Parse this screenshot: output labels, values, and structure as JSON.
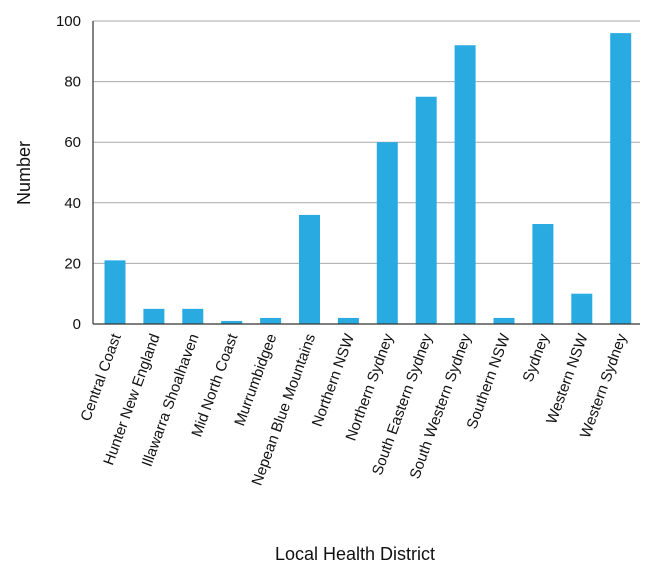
{
  "chart_data": {
    "type": "bar",
    "title": "",
    "xlabel": "Local Health District",
    "ylabel": "Number",
    "ylim": [
      0,
      100
    ],
    "yticks": [
      0,
      20,
      40,
      60,
      80,
      100
    ],
    "grid": true,
    "categories": [
      "Central Coast",
      "Hunter New England",
      "Illawarra Shoalhaven",
      "Mid North Coast",
      "Murrumbidgee",
      "Nepean Blue Mountains",
      "Northern NSW",
      "Northern Sydney",
      "South Eastern Sydney",
      "South Western Sydney",
      "Southern NSW",
      "Sydney",
      "Western NSW",
      "Western Sydney"
    ],
    "values": [
      21,
      5,
      5,
      1,
      2,
      36,
      2,
      60,
      75,
      92,
      2,
      33,
      10,
      96
    ]
  },
  "colors": {
    "bar": "#29abe2",
    "grid": "#aaaaaa",
    "axis": "#333333",
    "text": "#111111"
  }
}
